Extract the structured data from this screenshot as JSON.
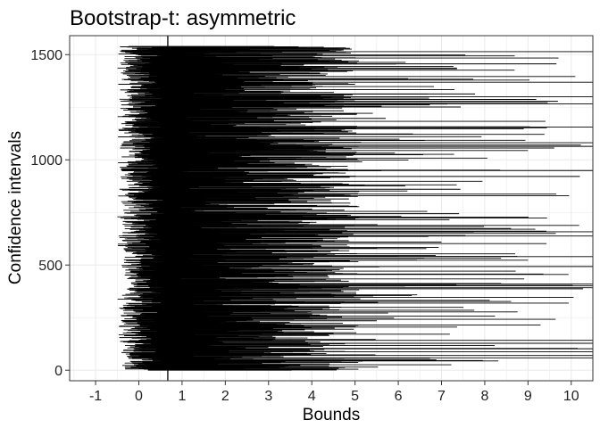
{
  "chart_data": {
    "type": "interval",
    "title": "Bootstrap-t: asymmetric",
    "xlabel": "Bounds",
    "ylabel": "Confidence intervals",
    "xlim": [
      -1.6,
      10.5
    ],
    "ylim": [
      -50,
      1590
    ],
    "x_ticks": [
      -1,
      0,
      1,
      2,
      3,
      4,
      5,
      6,
      7,
      8,
      9,
      10
    ],
    "y_ticks": [
      0,
      500,
      1000,
      1500
    ],
    "x_tick_labels": [
      "-1",
      "0",
      "1",
      "2",
      "3",
      "4",
      "5",
      "6",
      "7",
      "8",
      "9",
      "10"
    ],
    "y_tick_labels": [
      "0",
      "500",
      "1000",
      "1500"
    ],
    "n_intervals": 1540,
    "lower_bound_range": [
      -0.5,
      0.6
    ],
    "upper_bound_range": [
      0.6,
      10.5
    ],
    "reference_line_x": 0.67,
    "grid": true,
    "interval_color": "#000000",
    "grid_color": "#ebebeb"
  }
}
